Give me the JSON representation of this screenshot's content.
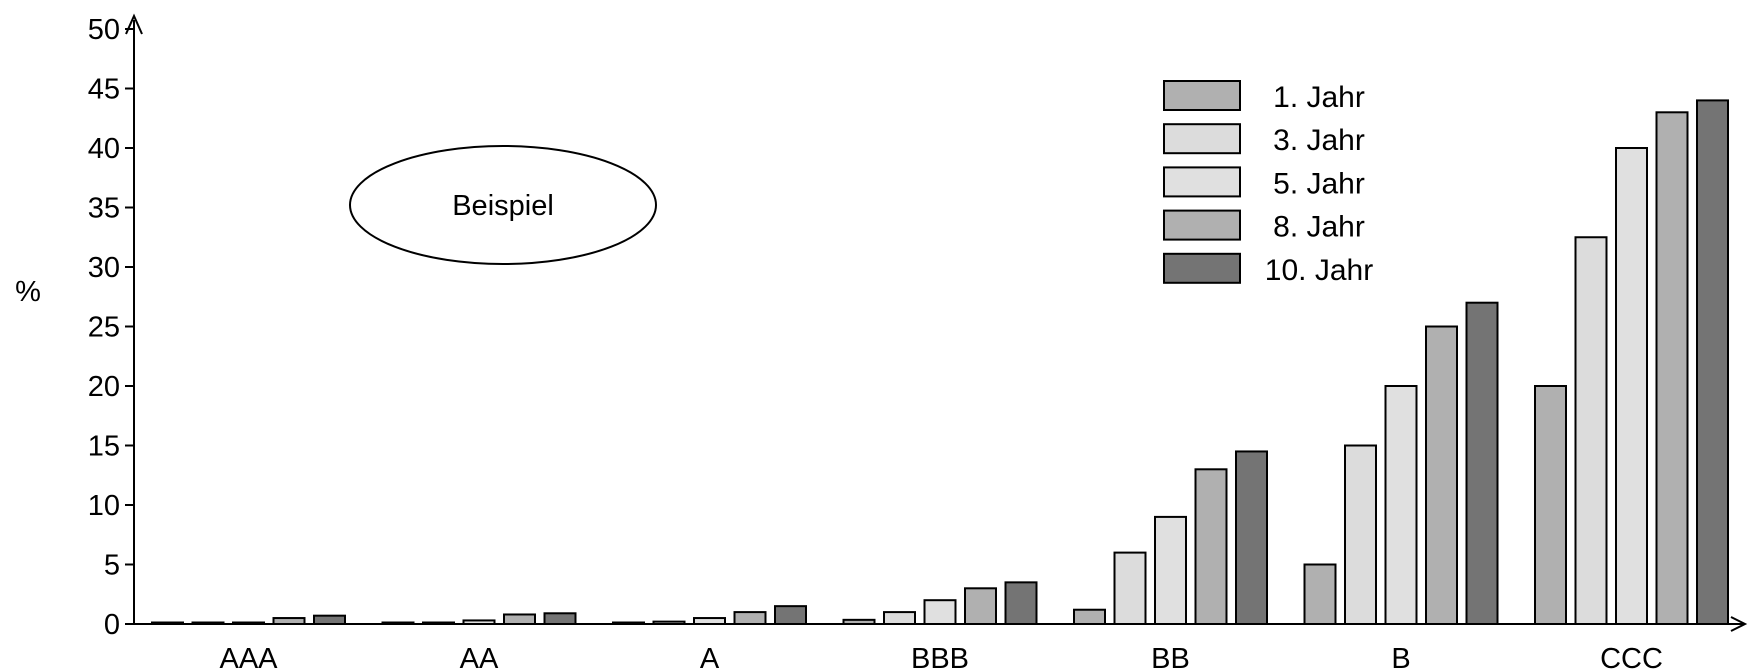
{
  "chart_data": {
    "type": "bar",
    "title": "",
    "xlabel": "",
    "ylabel": "%",
    "ylim": [
      0,
      50
    ],
    "yticks": [
      0,
      5,
      10,
      15,
      20,
      25,
      30,
      35,
      40,
      45,
      50
    ],
    "categories": [
      "AAA",
      "AA",
      "A",
      "BBB",
      "BB",
      "B",
      "CCC"
    ],
    "series": [
      {
        "name": "1. Jahr",
        "color": "#b0b0b0",
        "values": [
          0,
          0,
          0,
          0.35,
          1.2,
          5,
          20
        ]
      },
      {
        "name": "3. Jahr",
        "color": "#dcdcdc",
        "values": [
          0.1,
          0.1,
          0.2,
          1.0,
          6,
          15,
          32.5
        ]
      },
      {
        "name": "5. Jahr",
        "color": "#e0e0e0",
        "values": [
          0.1,
          0.3,
          0.5,
          2.0,
          9,
          20,
          40
        ]
      },
      {
        "name": "8. Jahr",
        "color": "#b0b0b0",
        "values": [
          0.5,
          0.8,
          1.0,
          3.0,
          13,
          25,
          43
        ]
      },
      {
        "name": "10. Jahr",
        "color": "#747474",
        "values": [
          0.7,
          0.9,
          1.5,
          3.5,
          14.5,
          27,
          44
        ]
      }
    ],
    "legend_position": "top-right",
    "grid": false,
    "annotation": "Beispiel"
  }
}
